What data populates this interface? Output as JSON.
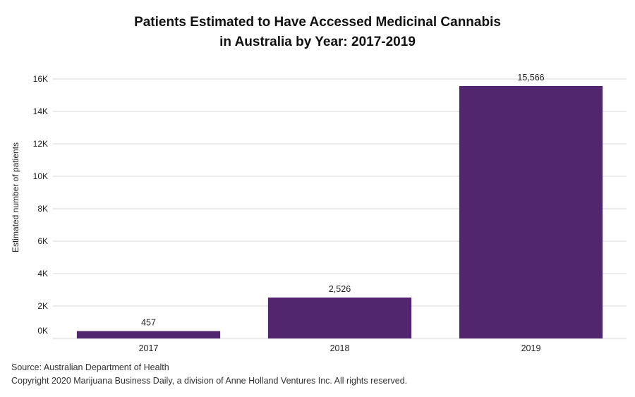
{
  "chart_data": {
    "type": "bar",
    "title_lines": [
      "Patients Estimated to Have Accessed Medicinal Cannabis",
      "in Australia by Year: 2017-2019"
    ],
    "xlabel": "",
    "ylabel": "Estimated number of patients",
    "categories": [
      "2017",
      "2018",
      "2019"
    ],
    "values": [
      457,
      2526,
      15566
    ],
    "value_labels": [
      "457",
      "2,526",
      "15,566"
    ],
    "ylim": [
      0,
      16000
    ],
    "yticks": [
      0,
      2000,
      4000,
      6000,
      8000,
      10000,
      12000,
      14000,
      16000
    ],
    "ytick_labels": [
      "0K",
      "2K",
      "4K",
      "6K",
      "8K",
      "10K",
      "12K",
      "14K",
      "16K"
    ],
    "grid": true,
    "legend": "none",
    "bar_color": "#52256f",
    "grid_color": "#d9d9d9"
  },
  "footer": {
    "source": "Source: Australian Department of Health",
    "copyright": "Copyright 2020 Marijuana Business Daily, a division of Anne Holland Ventures Inc. All rights reserved."
  }
}
